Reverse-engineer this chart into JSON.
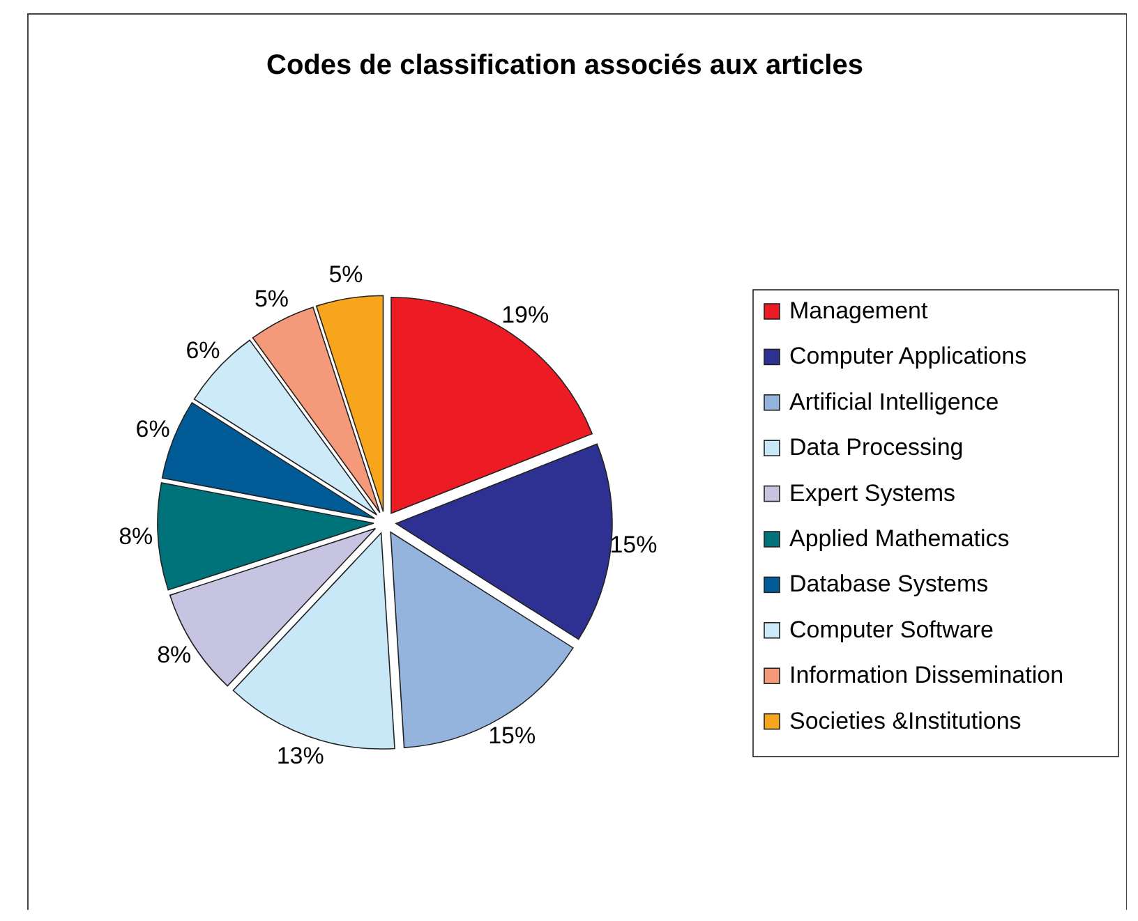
{
  "chart_data": {
    "type": "pie",
    "title": "Codes de classification associés aux articles",
    "categories": [
      "Management",
      "Computer Applications",
      "Artificial Intelligence",
      "Data Processing",
      "Expert Systems",
      "Applied Mathematics",
      "Database Systems",
      "Computer Software",
      "Information Dissemination",
      "Societies &Institutions"
    ],
    "values": [
      19,
      15,
      15,
      13,
      8,
      8,
      6,
      6,
      5,
      5
    ],
    "value_labels": [
      "19%",
      "15%",
      "15%",
      "13%",
      "8%",
      "8%",
      "6%",
      "6%",
      "5%",
      "5%"
    ],
    "colors": [
      "#ed1c24",
      "#2e3192",
      "#94b4de",
      "#c8e8f8",
      "#c7c4e2",
      "#00727a",
      "#005b96",
      "#cdeaf8",
      "#f49a7b",
      "#f7a51c"
    ],
    "legend": "right"
  }
}
